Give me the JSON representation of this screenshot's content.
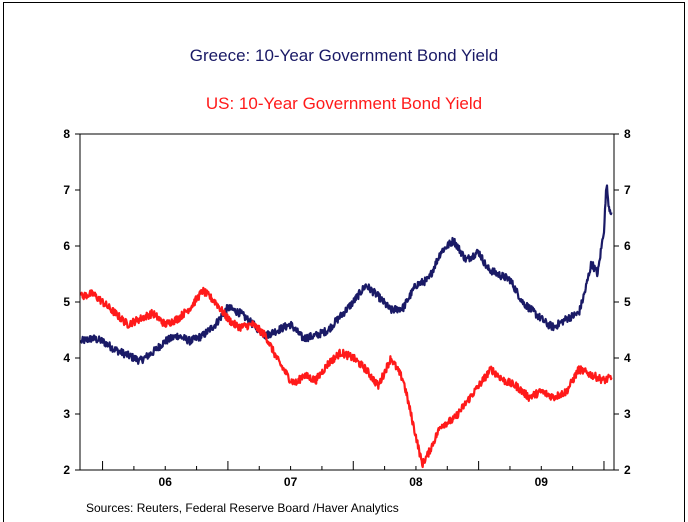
{
  "chart_data": {
    "type": "line",
    "titles": [
      {
        "text": "Greece: 10-Year Government Bond Yield",
        "color": "#1a1a66"
      },
      {
        "text": "US: 10-Year Government Bond Yield",
        "color": "#ff1a1a"
      }
    ],
    "ylim": [
      2,
      8
    ],
    "yticks": [
      "2",
      "3",
      "4",
      "5",
      "6",
      "7",
      "8"
    ],
    "xlim": [
      2005.82,
      2010.08
    ],
    "xtick_labels": [
      {
        "label": "06",
        "x": 2006.5
      },
      {
        "label": "07",
        "x": 2007.5
      },
      {
        "label": "08",
        "x": 2008.5
      },
      {
        "label": "09",
        "x": 2009.5
      }
    ],
    "xlabel": "",
    "ylabel": "",
    "source": "Sources: Reuters, Federal Reserve Board /Haver Analytics",
    "series": [
      {
        "name": "Greece: 10-Year Government Bond Yield",
        "color": "#1a1a66",
        "x": [
          2005.83,
          2005.92,
          2006.0,
          2006.1,
          2006.2,
          2006.3,
          2006.4,
          2006.5,
          2006.6,
          2006.7,
          2006.8,
          2006.9,
          2007.0,
          2007.1,
          2007.2,
          2007.3,
          2007.4,
          2007.5,
          2007.6,
          2007.7,
          2007.8,
          2007.9,
          2008.0,
          2008.1,
          2008.2,
          2008.3,
          2008.4,
          2008.5,
          2008.6,
          2008.7,
          2008.8,
          2008.9,
          2009.0,
          2009.07,
          2009.15,
          2009.25,
          2009.35,
          2009.45,
          2009.55,
          2009.6,
          2009.7,
          2009.8,
          2009.85,
          2009.9,
          2009.95,
          2010.0,
          2010.02,
          2010.04,
          2010.06
        ],
        "y": [
          4.3,
          4.35,
          4.3,
          4.15,
          4.05,
          3.95,
          4.1,
          4.3,
          4.4,
          4.3,
          4.4,
          4.6,
          4.9,
          4.8,
          4.6,
          4.4,
          4.5,
          4.6,
          4.35,
          4.4,
          4.5,
          4.75,
          5.0,
          5.3,
          5.1,
          4.85,
          4.9,
          5.3,
          5.4,
          5.9,
          6.1,
          5.75,
          5.9,
          5.6,
          5.5,
          5.4,
          5.0,
          4.8,
          4.6,
          4.55,
          4.7,
          4.8,
          5.2,
          5.7,
          5.5,
          6.3,
          7.1,
          6.7,
          6.6
        ]
      },
      {
        "name": "US: 10-Year Government Bond Yield",
        "color": "#ff1a1a",
        "x": [
          2005.83,
          2005.92,
          2006.0,
          2006.1,
          2006.2,
          2006.3,
          2006.4,
          2006.5,
          2006.6,
          2006.7,
          2006.8,
          2006.9,
          2007.0,
          2007.05,
          2007.1,
          2007.2,
          2007.3,
          2007.4,
          2007.5,
          2007.55,
          2007.6,
          2007.7,
          2007.8,
          2007.9,
          2008.0,
          2008.1,
          2008.2,
          2008.3,
          2008.4,
          2008.5,
          2008.55,
          2008.6,
          2008.7,
          2008.8,
          2008.9,
          2009.0,
          2009.1,
          2009.2,
          2009.3,
          2009.4,
          2009.5,
          2009.6,
          2009.7,
          2009.8,
          2009.9,
          2010.0,
          2010.06
        ],
        "y": [
          5.1,
          5.15,
          5.0,
          4.8,
          4.6,
          4.7,
          4.8,
          4.6,
          4.7,
          4.9,
          5.2,
          5.0,
          4.7,
          4.6,
          4.55,
          4.6,
          4.4,
          3.95,
          3.6,
          3.55,
          3.7,
          3.6,
          3.9,
          4.1,
          4.0,
          3.8,
          3.5,
          4.0,
          3.6,
          2.6,
          2.1,
          2.3,
          2.8,
          2.9,
          3.2,
          3.5,
          3.8,
          3.6,
          3.5,
          3.3,
          3.4,
          3.3,
          3.4,
          3.8,
          3.7,
          3.6,
          3.65
        ]
      }
    ]
  }
}
